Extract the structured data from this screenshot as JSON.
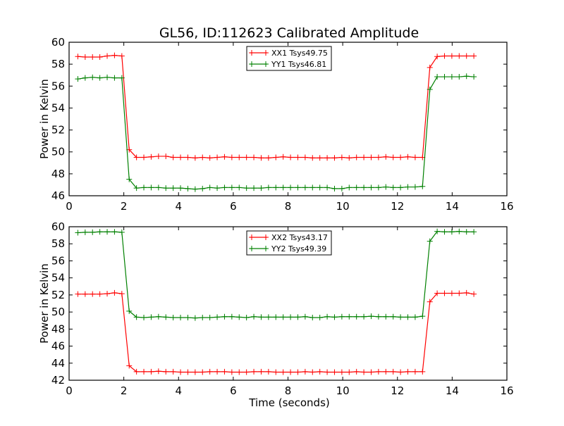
{
  "title": "GL56, ID:112623 Calibrated Amplitude",
  "chart_data": [
    {
      "type": "line",
      "title": "GL56, ID:112623 Calibrated Amplitude",
      "xlabel": "",
      "ylabel": "Power in Kelvin",
      "xlim": [
        0,
        16
      ],
      "ylim": [
        46,
        60
      ],
      "xticks": [
        "0",
        "2",
        "4",
        "6",
        "8",
        "10",
        "12",
        "14",
        "16"
      ],
      "yticks": [
        "46",
        "48",
        "50",
        "52",
        "54",
        "56",
        "58",
        "60"
      ],
      "legend_position": "top-center",
      "x_start": 0.32,
      "x_step": 0.268,
      "series": [
        {
          "name": "XX1 Tsys49.75",
          "color": "#ff0000",
          "values": [
            58.7,
            58.65,
            58.65,
            58.65,
            58.75,
            58.8,
            58.75,
            50.2,
            49.5,
            49.5,
            49.55,
            49.6,
            49.6,
            49.5,
            49.5,
            49.5,
            49.45,
            49.5,
            49.45,
            49.5,
            49.55,
            49.5,
            49.5,
            49.5,
            49.5,
            49.45,
            49.45,
            49.5,
            49.55,
            49.5,
            49.5,
            49.5,
            49.45,
            49.45,
            49.45,
            49.45,
            49.5,
            49.45,
            49.5,
            49.5,
            49.5,
            49.5,
            49.55,
            49.5,
            49.5,
            49.55,
            49.5,
            49.5,
            57.7,
            58.7,
            58.75,
            58.75,
            58.75,
            58.75,
            58.75
          ]
        },
        {
          "name": "YY1 Tsys46.81",
          "color": "#008000",
          "values": [
            56.65,
            56.75,
            56.8,
            56.75,
            56.8,
            56.75,
            56.75,
            47.5,
            46.7,
            46.75,
            46.75,
            46.75,
            46.7,
            46.7,
            46.7,
            46.65,
            46.6,
            46.65,
            46.75,
            46.7,
            46.75,
            46.75,
            46.75,
            46.7,
            46.7,
            46.7,
            46.75,
            46.75,
            46.75,
            46.75,
            46.75,
            46.75,
            46.75,
            46.75,
            46.75,
            46.65,
            46.65,
            46.75,
            46.75,
            46.75,
            46.75,
            46.75,
            46.8,
            46.75,
            46.75,
            46.8,
            46.8,
            46.85,
            55.7,
            56.85,
            56.85,
            56.85,
            56.85,
            56.9,
            56.85
          ]
        }
      ]
    },
    {
      "type": "line",
      "title": "",
      "xlabel": "Time (seconds)",
      "ylabel": "Power in Kelvin",
      "xlim": [
        0,
        16
      ],
      "ylim": [
        42,
        60
      ],
      "xticks": [
        "0",
        "2",
        "4",
        "6",
        "8",
        "10",
        "12",
        "14",
        "16"
      ],
      "yticks": [
        "42",
        "44",
        "46",
        "48",
        "50",
        "52",
        "54",
        "56",
        "58",
        "60"
      ],
      "legend_position": "top-center",
      "x_start": 0.32,
      "x_step": 0.268,
      "series": [
        {
          "name": "XX2 Tsys43.17",
          "color": "#ff0000",
          "values": [
            52.1,
            52.1,
            52.1,
            52.1,
            52.15,
            52.25,
            52.15,
            43.7,
            43.0,
            43.0,
            43.0,
            43.05,
            43.0,
            43.0,
            42.95,
            42.95,
            42.95,
            42.95,
            43.0,
            43.0,
            43.0,
            42.95,
            42.95,
            42.95,
            43.0,
            43.0,
            43.0,
            42.95,
            42.95,
            42.95,
            42.95,
            43.0,
            42.95,
            43.0,
            42.95,
            42.95,
            42.95,
            42.95,
            43.0,
            42.95,
            42.95,
            43.0,
            43.0,
            43.0,
            42.95,
            43.0,
            43.0,
            43.0,
            51.2,
            52.2,
            52.2,
            52.2,
            52.2,
            52.25,
            52.1
          ]
        },
        {
          "name": "YY2 Tsys49.39",
          "color": "#008000",
          "values": [
            59.3,
            59.35,
            59.35,
            59.4,
            59.4,
            59.4,
            59.35,
            50.1,
            49.4,
            49.35,
            49.4,
            49.45,
            49.4,
            49.35,
            49.35,
            49.35,
            49.3,
            49.35,
            49.35,
            49.4,
            49.45,
            49.45,
            49.4,
            49.35,
            49.45,
            49.4,
            49.4,
            49.4,
            49.4,
            49.4,
            49.4,
            49.45,
            49.35,
            49.35,
            49.45,
            49.4,
            49.45,
            49.45,
            49.45,
            49.45,
            49.5,
            49.45,
            49.45,
            49.45,
            49.4,
            49.4,
            49.4,
            49.5,
            58.3,
            59.45,
            59.4,
            59.4,
            59.45,
            59.4,
            59.4
          ]
        }
      ]
    }
  ]
}
